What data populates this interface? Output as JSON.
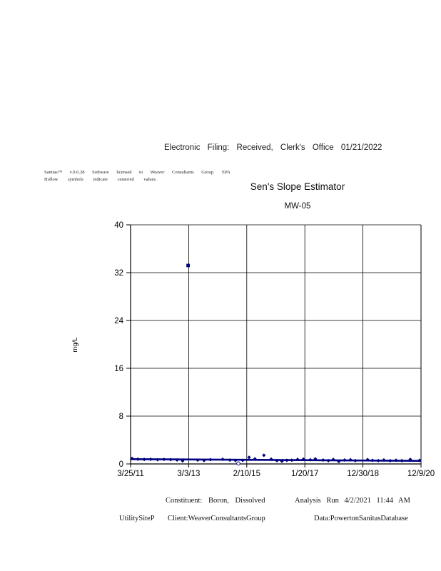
{
  "page": {
    "header": "Electronic Filing: Received, Clerk's Office 01/21/2022",
    "fine_print_line1": "Sanitas™ v.9.6.28 Software licensed to Weaver Consultants Group. EPA",
    "fine_print_line2": "Hollow symbols indicate censored values.",
    "footer": {
      "constituent": "Constituent: Boron, Dissolved",
      "analysis_run": "Analysis Run 4/2/2021 11:44 AM",
      "site": "UtilitySiteP",
      "client": "Client:WeaverConsultantsGroup",
      "data_source": "Data:PowertonSanitasDatabase"
    }
  },
  "chart_data": {
    "type": "scatter",
    "title": "Sen's Slope Estimator",
    "subtitle": "MW-05",
    "xlabel": "",
    "ylabel": "mg/L",
    "ylim": [
      0,
      40
    ],
    "yticks": [
      0,
      8,
      16,
      24,
      32,
      40
    ],
    "xtick_labels": [
      "3/25/11",
      "3/3/13",
      "2/10/15",
      "1/20/17",
      "12/30/18",
      "12/9/20"
    ],
    "grid": true,
    "legend": "none",
    "note": "Hollow symbols indicate censored values",
    "colors": {
      "series": "#000080",
      "grid": "#000000",
      "background": "#ffffff"
    },
    "sen_slope_line": {
      "name": "Sen's slope trend",
      "start_value": 0.8,
      "end_value": 0.52,
      "units": "mg/L"
    },
    "points": [
      {
        "x": 0.005,
        "y": 0.92,
        "sym": "diamond"
      },
      {
        "x": 0.025,
        "y": 0.8,
        "sym": "diamond"
      },
      {
        "x": 0.047,
        "y": 0.75,
        "sym": "diamond"
      },
      {
        "x": 0.069,
        "y": 0.78,
        "sym": "diamond"
      },
      {
        "x": 0.093,
        "y": 0.7,
        "sym": "diamond"
      },
      {
        "x": 0.115,
        "y": 0.76,
        "sym": "diamond"
      },
      {
        "x": 0.138,
        "y": 0.72,
        "sym": "diamond"
      },
      {
        "x": 0.16,
        "y": 0.66,
        "sym": "diamond"
      },
      {
        "x": 0.179,
        "y": 0.52,
        "sym": "diamond"
      },
      {
        "x": 0.198,
        "y": 33.2,
        "sym": "square"
      },
      {
        "x": 0.231,
        "y": 0.64,
        "sym": "diamond"
      },
      {
        "x": 0.253,
        "y": 0.58,
        "sym": "diamond"
      },
      {
        "x": 0.275,
        "y": 0.72,
        "sym": "diamond"
      },
      {
        "x": 0.317,
        "y": 0.78,
        "sym": "diamond"
      },
      {
        "x": 0.342,
        "y": 0.64,
        "sym": "diamond"
      },
      {
        "x": 0.361,
        "y": 0.58,
        "sym": "diamond"
      },
      {
        "x": 0.371,
        "y": 0.08,
        "sym": "censored"
      },
      {
        "x": 0.386,
        "y": 0.6,
        "sym": "diamond"
      },
      {
        "x": 0.408,
        "y": 1.1,
        "sym": "diamond"
      },
      {
        "x": 0.428,
        "y": 0.85,
        "sym": "diamond"
      },
      {
        "x": 0.459,
        "y": 1.45,
        "sym": "diamond"
      },
      {
        "x": 0.484,
        "y": 0.8,
        "sym": "diamond"
      },
      {
        "x": 0.504,
        "y": 0.55,
        "sym": "diamond"
      },
      {
        "x": 0.521,
        "y": 0.45,
        "sym": "diamond"
      },
      {
        "x": 0.538,
        "y": 0.6,
        "sym": "diamond"
      },
      {
        "x": 0.555,
        "y": 0.62,
        "sym": "diamond"
      },
      {
        "x": 0.575,
        "y": 0.76,
        "sym": "diamond"
      },
      {
        "x": 0.595,
        "y": 0.8,
        "sym": "diamond"
      },
      {
        "x": 0.619,
        "y": 0.7,
        "sym": "diamond"
      },
      {
        "x": 0.636,
        "y": 0.85,
        "sym": "diamond"
      },
      {
        "x": 0.663,
        "y": 0.65,
        "sym": "diamond"
      },
      {
        "x": 0.681,
        "y": 0.55,
        "sym": "diamond"
      },
      {
        "x": 0.698,
        "y": 0.75,
        "sym": "diamond"
      },
      {
        "x": 0.717,
        "y": 0.42,
        "sym": "diamond"
      },
      {
        "x": 0.737,
        "y": 0.65,
        "sym": "diamond"
      },
      {
        "x": 0.757,
        "y": 0.7,
        "sym": "diamond"
      },
      {
        "x": 0.774,
        "y": 0.55,
        "sym": "diamond"
      },
      {
        "x": 0.816,
        "y": 0.72,
        "sym": "diamond"
      },
      {
        "x": 0.833,
        "y": 0.6,
        "sym": "diamond"
      },
      {
        "x": 0.853,
        "y": 0.55,
        "sym": "diamond"
      },
      {
        "x": 0.872,
        "y": 0.66,
        "sym": "diamond"
      },
      {
        "x": 0.894,
        "y": 0.55,
        "sym": "diamond"
      },
      {
        "x": 0.914,
        "y": 0.62,
        "sym": "diamond"
      },
      {
        "x": 0.934,
        "y": 0.55,
        "sym": "diamond"
      },
      {
        "x": 0.963,
        "y": 0.76,
        "sym": "diamond"
      },
      {
        "x": 0.995,
        "y": 0.6,
        "sym": "diamond"
      }
    ]
  }
}
